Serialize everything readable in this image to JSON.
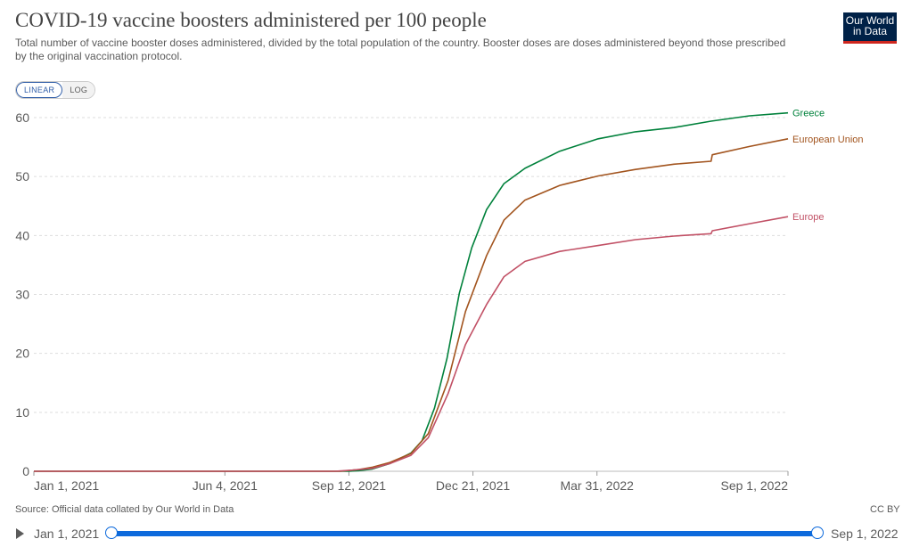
{
  "header": {
    "title": "COVID-19 vaccine boosters administered per 100 people",
    "subtitle": "Total number of vaccine booster doses administered, divided by the total population of the country. Booster doses are doses administered beyond those prescribed by the original vaccination protocol."
  },
  "logo": {
    "line1": "Our World",
    "line2": "in Data",
    "bg_color": "#002147",
    "accent_color": "#ce261e"
  },
  "scale_toggle": {
    "linear_label": "LINEAR",
    "log_label": "LOG",
    "selected": "LINEAR"
  },
  "footer": {
    "source": "Source: Official data collated by Our World in Data",
    "license": "CC BY"
  },
  "timeline": {
    "start_label": "Jan 1, 2021",
    "end_label": "Sep 1, 2022"
  },
  "chart_data": {
    "type": "line",
    "title": "COVID-19 vaccine boosters administered per 100 people",
    "xlabel": "",
    "ylabel": "",
    "x_range": [
      "2021-01-01",
      "2022-09-01"
    ],
    "ylim": [
      0,
      60
    ],
    "y_ticks": [
      0,
      10,
      20,
      30,
      40,
      50,
      60
    ],
    "x_ticks": [
      {
        "date": "2021-01-01",
        "label": "Jan 1, 2021"
      },
      {
        "date": "2021-06-04",
        "label": "Jun 4, 2021"
      },
      {
        "date": "2021-09-12",
        "label": "Sep 12, 2021"
      },
      {
        "date": "2021-12-21",
        "label": "Dec 21, 2021"
      },
      {
        "date": "2022-03-31",
        "label": "Mar 31, 2022"
      },
      {
        "date": "2022-09-01",
        "label": "Sep 1, 2022"
      }
    ],
    "grid": "horizontal dashed",
    "legend": "line-end labels",
    "series": [
      {
        "name": "Greece",
        "color": "#00813b",
        "points": [
          [
            "2021-01-01",
            0
          ],
          [
            "2021-09-12",
            0
          ],
          [
            "2021-09-20",
            0.1
          ],
          [
            "2021-10-01",
            0.4
          ],
          [
            "2021-10-15",
            1.3
          ],
          [
            "2021-11-01",
            3.1
          ],
          [
            "2021-11-10",
            5.2
          ],
          [
            "2021-11-20",
            10.7
          ],
          [
            "2021-11-30",
            19.1
          ],
          [
            "2021-12-10",
            30.2
          ],
          [
            "2021-12-20",
            37.9
          ],
          [
            "2022-01-01",
            44.4
          ],
          [
            "2022-01-15",
            48.8
          ],
          [
            "2022-02-01",
            51.4
          ],
          [
            "2022-03-01",
            54.3
          ],
          [
            "2022-04-01",
            56.4
          ],
          [
            "2022-05-01",
            57.6
          ],
          [
            "2022-06-01",
            58.3
          ],
          [
            "2022-07-01",
            59.4
          ],
          [
            "2022-08-01",
            60.3
          ],
          [
            "2022-09-01",
            60.8
          ]
        ]
      },
      {
        "name": "European Union",
        "color": "#a2541e",
        "points": [
          [
            "2021-01-01",
            0
          ],
          [
            "2021-09-05",
            0
          ],
          [
            "2021-09-20",
            0.3
          ],
          [
            "2021-10-01",
            0.7
          ],
          [
            "2021-10-15",
            1.5
          ],
          [
            "2021-11-01",
            3.0
          ],
          [
            "2021-11-15",
            6.4
          ],
          [
            "2021-12-01",
            15.4
          ],
          [
            "2021-12-15",
            27.1
          ],
          [
            "2022-01-01",
            36.6
          ],
          [
            "2022-01-15",
            42.6
          ],
          [
            "2022-02-01",
            46.0
          ],
          [
            "2022-03-01",
            48.5
          ],
          [
            "2022-04-01",
            50.1
          ],
          [
            "2022-05-01",
            51.2
          ],
          [
            "2022-06-01",
            52.1
          ],
          [
            "2022-07-01",
            52.6
          ],
          [
            "2022-07-02",
            53.7
          ],
          [
            "2022-08-01",
            55.1
          ],
          [
            "2022-09-01",
            56.4
          ]
        ]
      },
      {
        "name": "Europe",
        "color": "#c15065",
        "points": [
          [
            "2021-01-01",
            0
          ],
          [
            "2021-09-01",
            0
          ],
          [
            "2021-09-15",
            0.2
          ],
          [
            "2021-10-01",
            0.5
          ],
          [
            "2021-10-15",
            1.3
          ],
          [
            "2021-11-01",
            2.7
          ],
          [
            "2021-11-15",
            5.7
          ],
          [
            "2021-12-01",
            13.2
          ],
          [
            "2021-12-15",
            21.5
          ],
          [
            "2022-01-01",
            28.3
          ],
          [
            "2022-01-15",
            33.0
          ],
          [
            "2022-02-01",
            35.6
          ],
          [
            "2022-03-01",
            37.3
          ],
          [
            "2022-04-01",
            38.3
          ],
          [
            "2022-05-01",
            39.3
          ],
          [
            "2022-06-01",
            39.9
          ],
          [
            "2022-07-01",
            40.3
          ],
          [
            "2022-07-02",
            40.8
          ],
          [
            "2022-08-01",
            42.0
          ],
          [
            "2022-09-01",
            43.2
          ]
        ]
      }
    ]
  }
}
